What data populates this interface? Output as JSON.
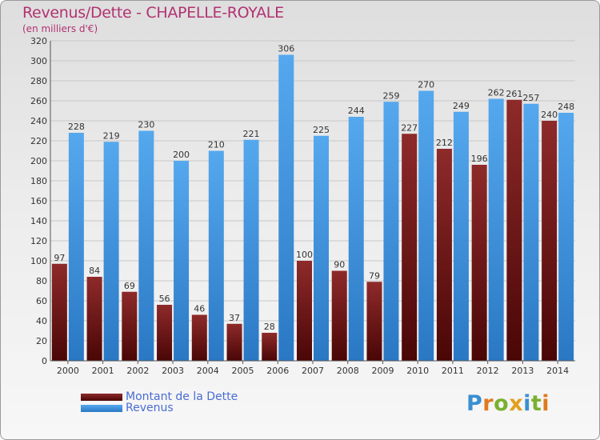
{
  "title": "Revenus/Dette - CHAPELLE-ROYALE",
  "subtitle": "(en milliers d'€)",
  "brand": "Proxiti",
  "colors": {
    "dette": "#7a1a1a",
    "revenus": "#3d8fd8",
    "title": "#b23272",
    "legend_text": "#4a6cd4"
  },
  "chart_data": {
    "type": "bar",
    "categories": [
      "2000",
      "2001",
      "2002",
      "2003",
      "2004",
      "2005",
      "2006",
      "2007",
      "2008",
      "2009",
      "2010",
      "2011",
      "2012",
      "2013",
      "2014"
    ],
    "series": [
      {
        "name": "Montant de la Dette",
        "values": [
          97,
          84,
          69,
          56,
          46,
          37,
          28,
          100,
          90,
          79,
          227,
          212,
          196,
          261,
          240
        ]
      },
      {
        "name": "Revenus",
        "values": [
          228,
          219,
          230,
          200,
          210,
          221,
          306,
          225,
          244,
          259,
          270,
          249,
          262,
          257,
          248
        ]
      }
    ],
    "ylim": [
      0,
      320
    ],
    "yticks": [
      0,
      20,
      40,
      60,
      80,
      100,
      120,
      140,
      160,
      180,
      200,
      220,
      240,
      260,
      280,
      300,
      320
    ],
    "grid": true,
    "legend_position": "bottom-left"
  }
}
